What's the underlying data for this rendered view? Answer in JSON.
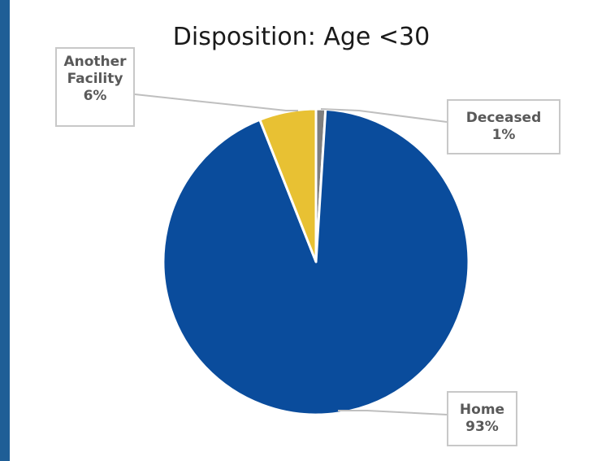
{
  "chart_data": {
    "type": "pie",
    "title": "Disposition: Age <30",
    "slices": [
      {
        "label": "Deceased",
        "value": 1,
        "value_label": "1%",
        "color": "#7f7f7f"
      },
      {
        "label": "Home",
        "value": 93,
        "value_label": "93%",
        "color": "#0a4c9c"
      },
      {
        "label": "Another Facility",
        "value": 6,
        "value_label": "6%",
        "color": "#e8c133"
      }
    ],
    "callouts": [
      {
        "lines": [
          "Another",
          "Facility"
        ],
        "value_label": "6%"
      },
      {
        "lines": [
          "Deceased"
        ],
        "value_label": "1%"
      },
      {
        "lines": [
          "Home"
        ],
        "value_label": "93%"
      }
    ]
  },
  "colors": {
    "background": "#1f5e96",
    "frame": "#ffffff",
    "slice_border": "#ffffff",
    "leader": "#bfbfbf"
  }
}
